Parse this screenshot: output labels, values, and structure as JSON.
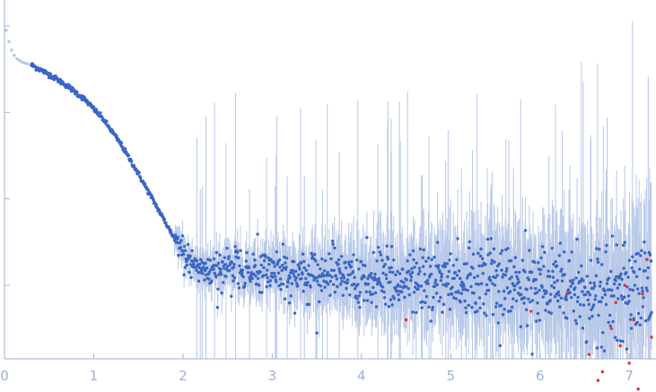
{
  "chart_data": {
    "type": "scatter",
    "title": "",
    "xlabel": "",
    "ylabel": "",
    "xlim": [
      0,
      7.3
    ],
    "y_scale": "log",
    "y_tick_labels_visible": false,
    "x_ticks": [
      {
        "value": 0,
        "label": "0"
      },
      {
        "value": 1,
        "label": "1"
      },
      {
        "value": 2,
        "label": "2"
      },
      {
        "value": 3,
        "label": "3"
      },
      {
        "value": 4,
        "label": "4"
      },
      {
        "value": 5,
        "label": "5"
      },
      {
        "value": 6,
        "label": "6"
      },
      {
        "value": 7,
        "label": "7"
      }
    ],
    "grid": false,
    "colors": {
      "points": "#3a66c4",
      "error_bars": "#b8c8e8",
      "excluded_low_s": "#b8c8e8",
      "outliers": "#e83030",
      "axis": "#9fb0d6"
    },
    "series": [
      {
        "role": "excluded low-s points",
        "x": [
          0.02,
          0.05,
          0.08,
          0.11,
          0.14,
          0.17,
          0.2,
          0.23,
          0.26
        ],
        "log_y": [
          4.95,
          4.82,
          4.72,
          4.66,
          4.62,
          4.6,
          4.58,
          4.57,
          4.56
        ]
      },
      {
        "role": "measured intensity",
        "x": [
          0.3,
          0.5,
          0.7,
          0.9,
          1.1,
          1.3,
          1.5,
          1.7,
          1.9,
          2.0,
          2.1,
          2.2,
          2.3,
          2.5,
          3.0,
          3.5,
          4.0,
          4.5,
          5.0,
          5.5,
          6.0,
          6.5,
          7.0,
          7.25
        ],
        "log_y": [
          4.55,
          4.44,
          4.31,
          4.15,
          3.93,
          3.64,
          3.29,
          2.92,
          2.55,
          2.38,
          2.26,
          2.2,
          2.17,
          2.15,
          2.13,
          2.1,
          2.05,
          2.05,
          2.05,
          2.04,
          2.02,
          1.98,
          1.95,
          1.95
        ]
      },
      {
        "role": "outliers",
        "x": [
          4.5,
          5.9,
          6.3,
          6.55,
          6.65,
          6.7,
          6.8,
          6.85,
          6.9,
          6.95,
          7.0,
          7.05,
          7.1,
          7.15,
          7.2,
          7.25
        ],
        "log_y": [
          1.6,
          1.7,
          1.9,
          1.2,
          0.9,
          1.0,
          1.5,
          1.8,
          1.3,
          2.0,
          1.1,
          1.6,
          0.8,
          1.9,
          2.3,
          1.4
        ]
      }
    ]
  }
}
